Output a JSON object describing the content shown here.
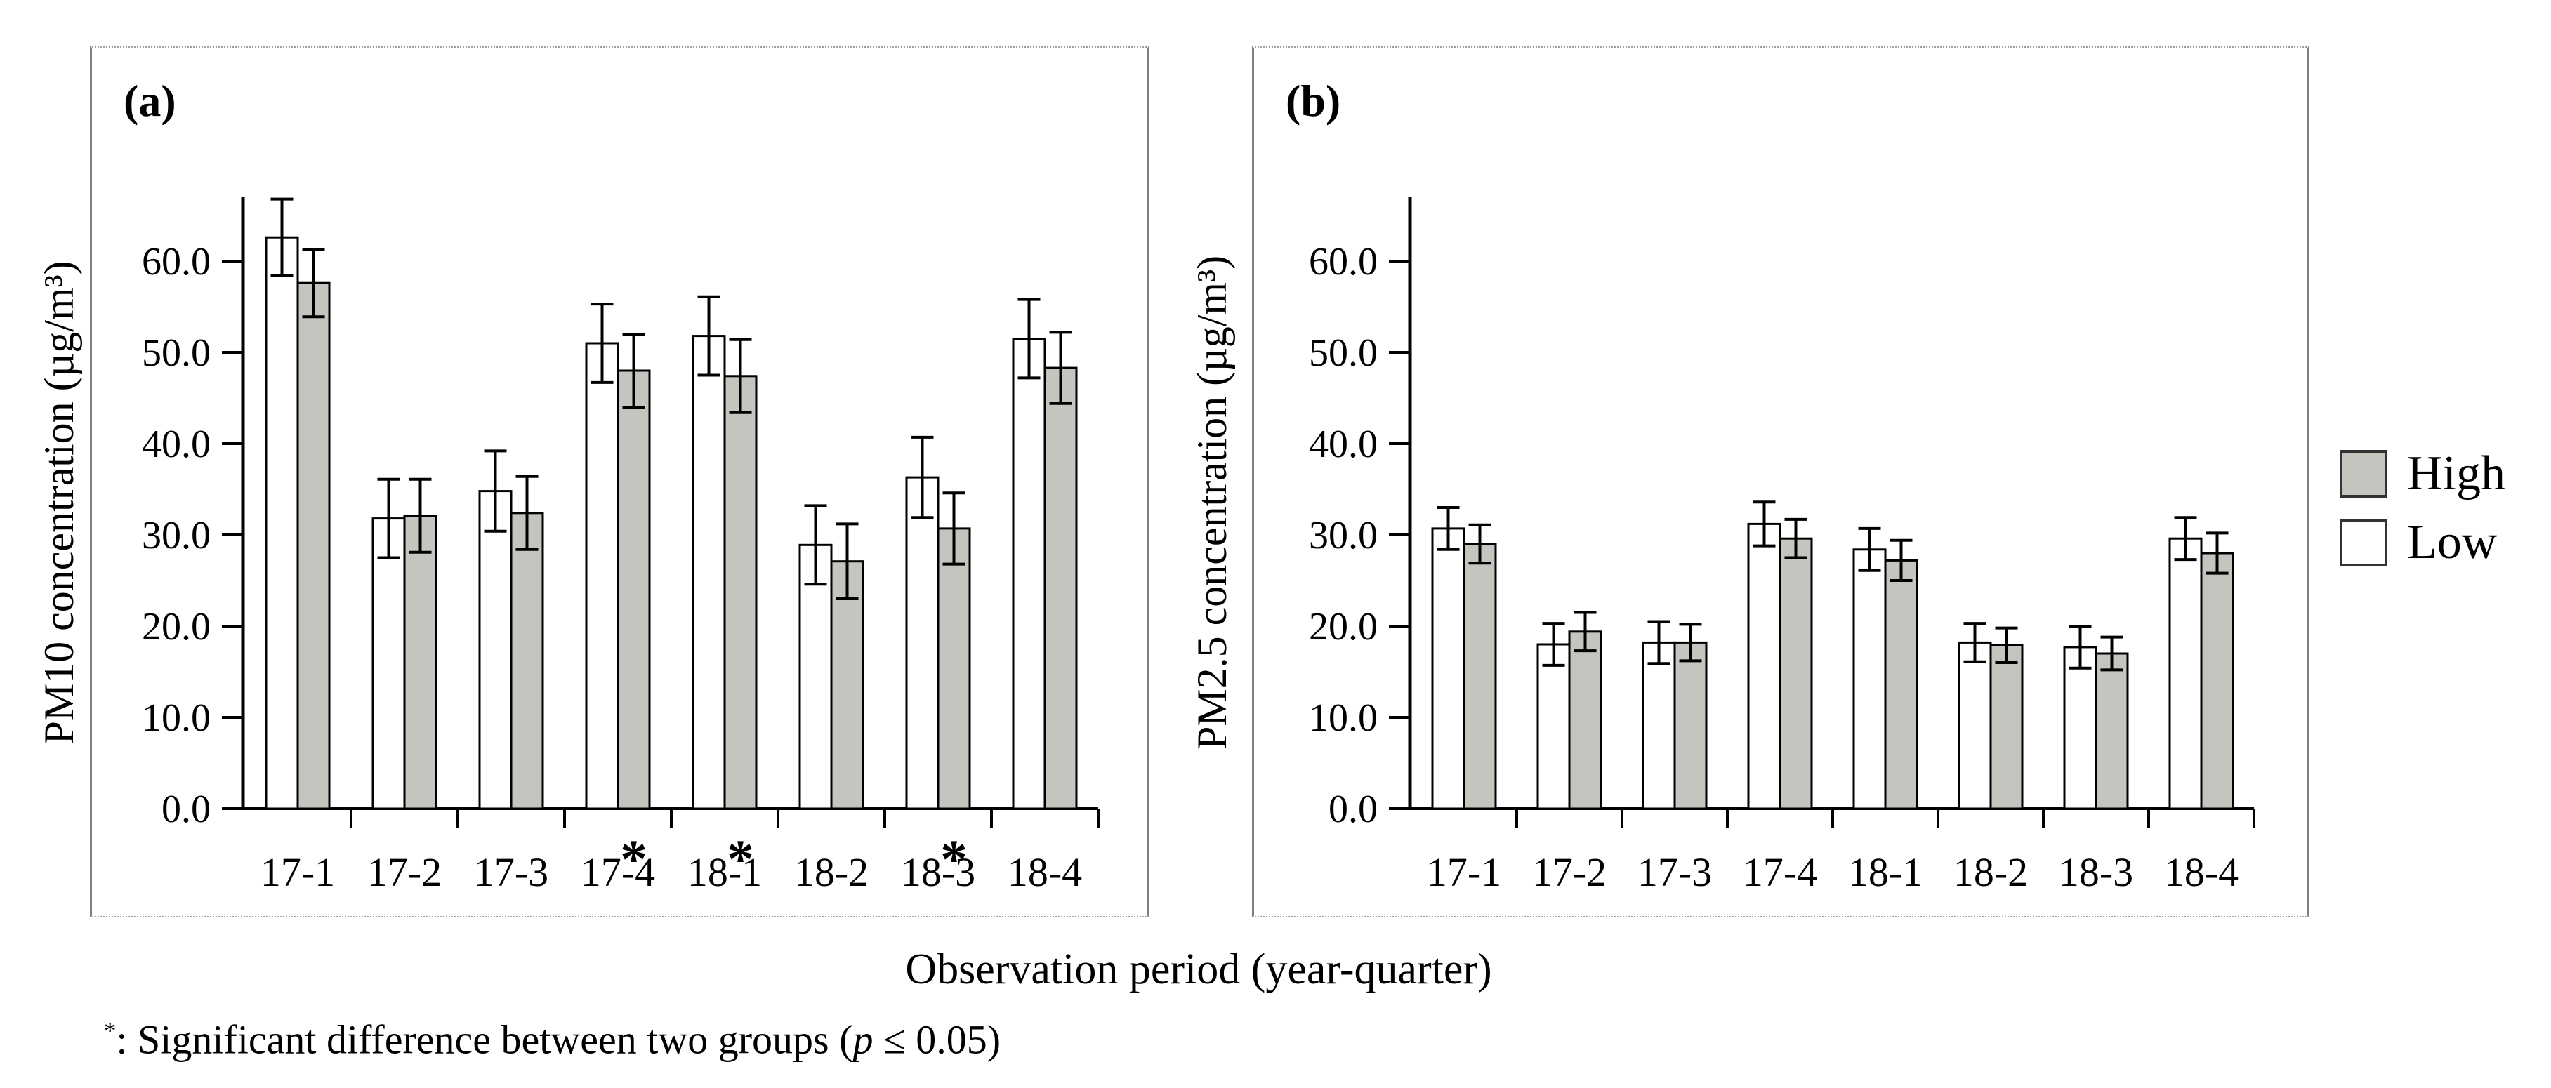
{
  "figure": {
    "xlabel": "Observation period (year-quarter)",
    "footnote": {
      "symbol": "*",
      "text": ": Significant difference between two groups (",
      "p": "p",
      "tail": " ≤ 0.05)"
    }
  },
  "legend": {
    "position": "right-middle",
    "items": [
      {
        "label": "High",
        "fill": "#c3c5bf"
      },
      {
        "label": "Low",
        "fill": "#ffffff"
      }
    ]
  },
  "colors": {
    "bar_border": "#000000",
    "high_fill": "#c3c5bf",
    "low_fill": "#ffffff",
    "axis": "#000000",
    "panel_border": "#9f9f9f"
  },
  "chart_data": [
    {
      "type": "bar",
      "panel": "(a)",
      "ylabel": "PM10 concentration (µg/m³)",
      "xlabel": "Observation period (year-quarter)",
      "ylim": [
        0,
        67
      ],
      "yticks": [
        0,
        10,
        20,
        30,
        40,
        50,
        60
      ],
      "grid": "off",
      "error_bars": true,
      "categories": [
        "17-1",
        "17-2",
        "17-3",
        "17-4",
        "18-1",
        "18-2",
        "18-3",
        "18-4"
      ],
      "series": [
        {
          "name": "Low",
          "fill": "#ffffff",
          "values": [
            62.6,
            31.8,
            34.8,
            51.0,
            51.8,
            28.9,
            36.3,
            51.5
          ],
          "errors": [
            4.2,
            4.3,
            4.4,
            4.3,
            4.3,
            4.3,
            4.4,
            4.3
          ]
        },
        {
          "name": "High",
          "fill": "#c3c5bf",
          "values": [
            57.6,
            32.1,
            32.4,
            48.0,
            47.4,
            27.1,
            30.7,
            48.3
          ],
          "errors": [
            3.7,
            4.0,
            4.0,
            4.0,
            4.0,
            4.1,
            3.9,
            3.9
          ]
        }
      ],
      "significant_categories": [
        "17-4",
        "18-1",
        "18-3"
      ]
    },
    {
      "type": "bar",
      "panel": "(b)",
      "ylabel": "PM2.5 concentration (µg/m³)",
      "xlabel": "Observation period (year-quarter)",
      "ylim": [
        0,
        67
      ],
      "yticks": [
        0,
        10,
        20,
        30,
        40,
        50,
        60
      ],
      "grid": "off",
      "error_bars": true,
      "categories": [
        "17-1",
        "17-2",
        "17-3",
        "17-4",
        "18-1",
        "18-2",
        "18-3",
        "18-4"
      ],
      "series": [
        {
          "name": "Low",
          "fill": "#ffffff",
          "values": [
            30.7,
            18.0,
            18.2,
            31.2,
            28.4,
            18.2,
            17.7,
            29.6
          ],
          "errors": [
            2.3,
            2.3,
            2.3,
            2.4,
            2.3,
            2.1,
            2.3,
            2.3
          ]
        },
        {
          "name": "High",
          "fill": "#c3c5bf",
          "values": [
            29.0,
            19.4,
            18.2,
            29.6,
            27.2,
            17.9,
            17.0,
            28.0
          ],
          "errors": [
            2.1,
            2.1,
            2.0,
            2.1,
            2.2,
            1.9,
            1.8,
            2.2
          ]
        }
      ],
      "significant_categories": []
    }
  ]
}
